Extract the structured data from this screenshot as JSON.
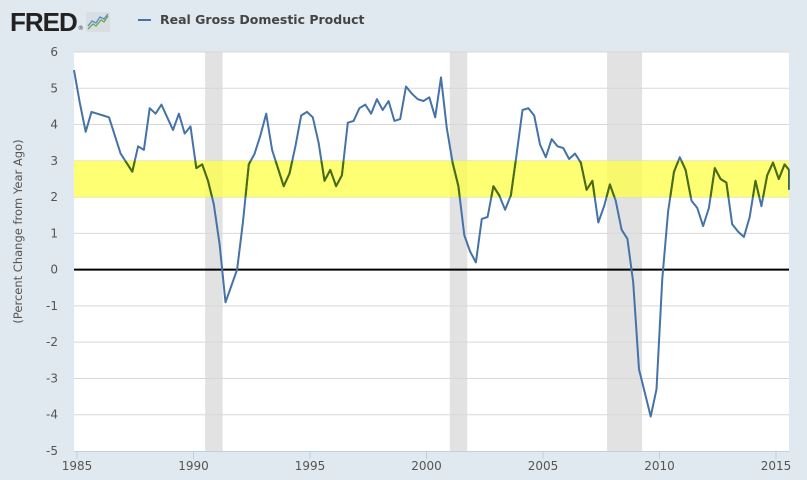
{
  "header": {
    "logo_text": "FRED",
    "logo_reg": "®",
    "legend_label": "Real Gross Domestic Product"
  },
  "colors": {
    "series": "#4572a7",
    "series_in_band": "#4a6d10",
    "band": "#ffff44",
    "recession": "#e2e2e2",
    "zero_line": "#000000",
    "background": "#e1e9f0",
    "plot_background": "#ffffff"
  },
  "chart_data": {
    "type": "line",
    "title": "Real Gross Domestic Product",
    "xlabel": "",
    "ylabel": "(Percent Change from Year Ago)",
    "xlim": [
      1985.0,
      2015.5
    ],
    "ylim": [
      -5,
      6
    ],
    "x_ticks": [
      1985,
      1990,
      1995,
      2000,
      2005,
      2010,
      2015
    ],
    "x_tick_labels": [
      "1985",
      "1990",
      "1995",
      "2000",
      "2005",
      "2010",
      "2015"
    ],
    "y_ticks": [
      6,
      5,
      4,
      3,
      2,
      1,
      0,
      -1,
      -2,
      -3,
      -4,
      -5
    ],
    "y_tick_labels": [
      "6",
      "5",
      "4",
      "3",
      "2",
      "1",
      "0",
      "-1",
      "-2",
      "-3",
      "-4",
      "-5"
    ],
    "grid": true,
    "legend": "top-left",
    "frequency": "quarterly",
    "start": 1985.0,
    "step": 0.25,
    "highlight_band": {
      "from": 2,
      "to": 3
    },
    "zero_line": 0,
    "recessions": [
      [
        1990.5,
        1991.25
      ],
      [
        2001.0,
        2001.75
      ],
      [
        2007.75,
        2009.25
      ]
    ],
    "series": [
      {
        "name": "Real Gross Domestic Product",
        "values": [
          5.5,
          4.6,
          3.8,
          4.35,
          4.3,
          4.25,
          4.2,
          3.7,
          3.2,
          2.95,
          2.7,
          3.4,
          3.3,
          4.45,
          4.3,
          4.55,
          4.2,
          3.85,
          4.3,
          3.75,
          3.95,
          2.8,
          2.9,
          2.45,
          1.8,
          0.7,
          -0.9,
          -0.45,
          0.0,
          1.3,
          2.9,
          3.2,
          3.7,
          4.3,
          3.3,
          2.8,
          2.3,
          2.65,
          3.4,
          4.25,
          4.35,
          4.2,
          3.5,
          2.45,
          2.75,
          2.3,
          2.6,
          4.05,
          4.1,
          4.45,
          4.55,
          4.3,
          4.7,
          4.4,
          4.65,
          4.1,
          4.15,
          5.05,
          4.85,
          4.7,
          4.65,
          4.75,
          4.2,
          5.3,
          3.9,
          2.95,
          2.3,
          0.95,
          0.5,
          0.2,
          1.4,
          1.45,
          2.3,
          2.05,
          1.65,
          2.05,
          3.2,
          4.4,
          4.45,
          4.25,
          3.45,
          3.1,
          3.6,
          3.4,
          3.35,
          3.05,
          3.2,
          2.95,
          2.2,
          2.45,
          1.3,
          1.75,
          2.35,
          1.9,
          1.1,
          0.85,
          -0.35,
          -2.75,
          -3.4,
          -4.05,
          -3.3,
          -0.25,
          1.6,
          2.7,
          3.1,
          2.75,
          1.9,
          1.7,
          1.2,
          1.7,
          2.8,
          2.5,
          2.4,
          1.25,
          1.05,
          0.9,
          1.45,
          2.45,
          1.75,
          2.6,
          2.95,
          2.5,
          2.9,
          2.75,
          2.2
        ]
      }
    ]
  }
}
